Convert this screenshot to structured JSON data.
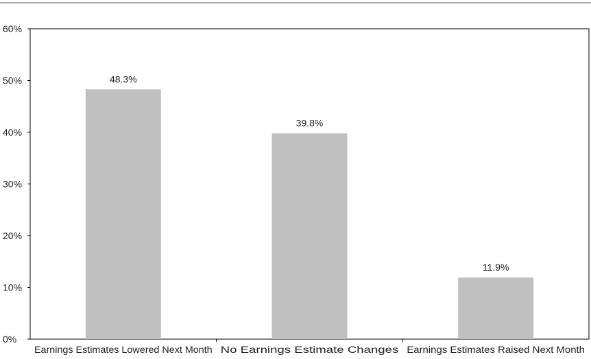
{
  "chart_data": {
    "type": "bar",
    "categories": [
      "Earnings Estimates Lowered Next Month",
      "No Earnings Estimate Changes",
      "Earnings Estimates Raised Next Month"
    ],
    "values": [
      48.3,
      39.8,
      11.9
    ],
    "data_labels": [
      "48.3%",
      "39.8%",
      "11.9%"
    ],
    "ylim": [
      0,
      60
    ],
    "yticks": [
      0,
      10,
      20,
      30,
      40,
      50,
      60
    ],
    "ytick_labels": [
      "0%",
      "10%",
      "20%",
      "30%",
      "40%",
      "50%",
      "60%"
    ],
    "grid": false,
    "legend": "none",
    "colors": {
      "bar": "#c0c0c0",
      "axis": "#000000",
      "top_rule": "#888888",
      "text": "#222222"
    }
  }
}
